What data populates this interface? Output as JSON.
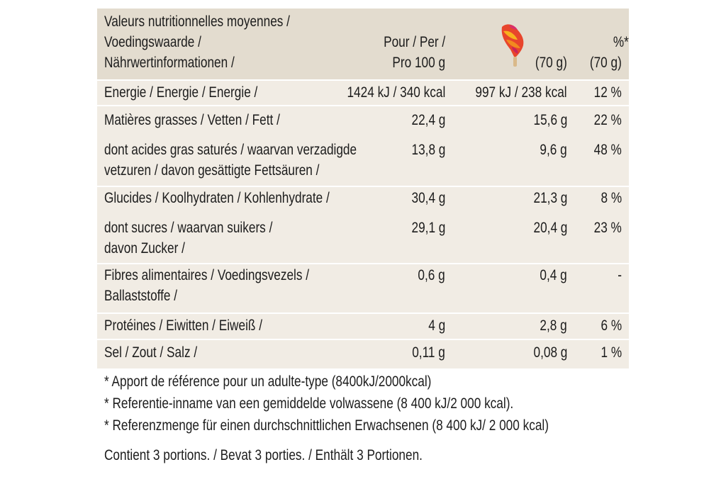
{
  "header": {
    "label_lines": [
      "Valeurs nutritionnelles moyennes /",
      "Voedingswaarde /",
      "Nährwertinformationen /"
    ],
    "per100_lines": [
      "Pour / Per /",
      "Pro 100 g"
    ],
    "portion_label": "(70 g)",
    "percent_lines": [
      "%*",
      "(70 g)"
    ],
    "portion_icon": "ice-cream-icon"
  },
  "rows": [
    {
      "label_lines": [
        "Energie / Energie / Energie /"
      ],
      "per100": "1424 kJ / 340 kcal",
      "portion": "997 kJ / 238 kcal",
      "percent": "12 %"
    },
    {
      "label_lines": [
        "Matières grasses / Vetten / Fett /"
      ],
      "per100": "22,4 g",
      "portion": "15,6 g",
      "percent": "22 %"
    },
    {
      "label_lines": [
        "dont acides gras saturés / waarvan verzadigde",
        "vetzuren / davon gesättigte Fettsäuren /"
      ],
      "per100": "13,8 g",
      "portion": "9,6 g",
      "percent": "48 %"
    },
    {
      "label_lines": [
        "Glucides / Koolhydraten / Kohlenhydrate /"
      ],
      "per100": "30,4 g",
      "portion": "21,3 g",
      "percent": "8 %"
    },
    {
      "label_lines": [
        "dont sucres / waarvan suikers /",
        "davon Zucker /"
      ],
      "per100": "29,1 g",
      "portion": "20,4 g",
      "percent": "23 %"
    },
    {
      "label_lines": [
        "Fibres alimentaires / Voedingsvezels /",
        "Ballaststoffe /"
      ],
      "per100": "0,6 g",
      "portion": "0,4 g",
      "percent": "-"
    },
    {
      "label_lines": [
        "Protéines / Eiwitten / Eiweiß /"
      ],
      "per100": "4 g",
      "portion": "2,8 g",
      "percent": "6 %"
    },
    {
      "label_lines": [
        "Sel / Zout / Salz /"
      ],
      "per100": "0,11 g",
      "portion": "0,08 g",
      "percent": "1 %"
    }
  ],
  "footnotes": [
    "* Apport de référence pour un adulte-type (8400kJ/2000kcal)",
    "* Referentie-inname van een gemiddelde volwassene (8 400 kJ/2 000 kcal).",
    "* Referenzmenge für einen durchschnittlichen Erwachsenen (8 400 kJ/ 2 000 kcal)"
  ],
  "portions_note": "Contient 3 portions. / Bevat 3 porties. / Enthält 3 Portionen.",
  "colors": {
    "header_bg": "#e3dccf",
    "body_bg": "#f1ece4",
    "text": "#1c1c1c"
  }
}
